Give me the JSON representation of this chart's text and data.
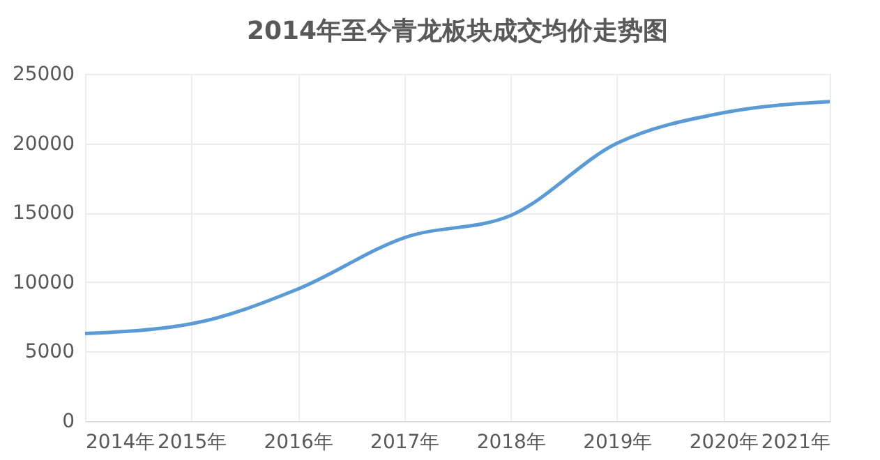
{
  "chart_data": {
    "type": "line",
    "title": "2014年至今青龙板块成交均价走势图",
    "categories": [
      "2014年",
      "2015年",
      "2016年",
      "2017年",
      "2018年",
      "2019年",
      "2020年",
      "2021年"
    ],
    "series": [
      {
        "color": "#5b9bd5",
        "values": [
          6300,
          7000,
          9500,
          13200,
          14800,
          20000,
          22200,
          23000
        ]
      }
    ],
    "ylim": [
      0,
      25000
    ],
    "yticks": [
      0,
      5000,
      10000,
      15000,
      20000,
      25000
    ],
    "grid": true,
    "marker": "none",
    "line_style": "solid"
  }
}
